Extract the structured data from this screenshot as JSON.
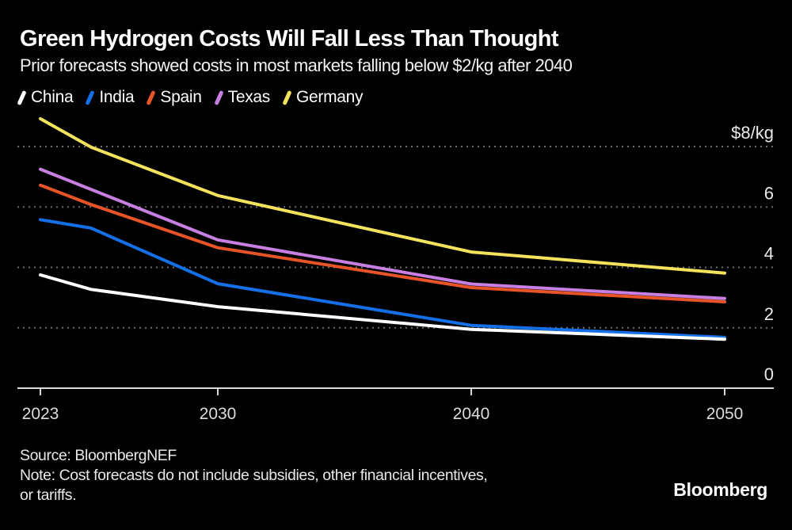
{
  "header": {
    "title": "Green Hydrogen Costs Will Fall Less Than Thought",
    "subtitle": "Prior forecasts showed costs in most markets falling below $2/kg after 2040"
  },
  "legend": [
    {
      "label": "China",
      "color": "#FFFFFF"
    },
    {
      "label": "India",
      "color": "#1570E8"
    },
    {
      "label": "Spain",
      "color": "#E65427"
    },
    {
      "label": "Texas",
      "color": "#C77FE2"
    },
    {
      "label": "Germany",
      "color": "#F2E25C"
    }
  ],
  "chart_data": {
    "type": "line",
    "title": "Green Hydrogen Costs Will Fall Less Than Thought",
    "subtitle": "Prior forecasts showed costs in most markets falling below $2/kg after 2040",
    "unit": "$/kg",
    "x": [
      2023,
      2025,
      2030,
      2040,
      2050
    ],
    "series": [
      {
        "name": "China",
        "color": "#FFFFFF",
        "values": [
          3.75,
          3.27,
          2.7,
          1.95,
          1.62
        ]
      },
      {
        "name": "India",
        "color": "#1570E8",
        "values": [
          5.58,
          5.3,
          3.46,
          2.08,
          1.68
        ]
      },
      {
        "name": "Spain",
        "color": "#E65427",
        "values": [
          6.72,
          6.08,
          4.65,
          3.33,
          2.86
        ]
      },
      {
        "name": "Texas",
        "color": "#C77FE2",
        "values": [
          7.25,
          6.58,
          4.91,
          3.45,
          2.97
        ]
      },
      {
        "name": "Germany",
        "color": "#F2E25C",
        "values": [
          8.92,
          7.98,
          6.38,
          4.51,
          3.81
        ]
      }
    ],
    "y_axis": {
      "top_label": "$8/kg",
      "ticks": [
        8,
        6,
        4,
        2,
        0
      ],
      "tick_labels": [
        "$8/kg",
        "6",
        "4",
        "2",
        "0"
      ],
      "range": [
        0,
        9.2
      ],
      "gridlines": "dotted"
    },
    "x_axis": {
      "ticks": [
        2023,
        2030,
        2040,
        2050
      ],
      "tick_labels": [
        "2023",
        "2030",
        "2040",
        "2050"
      ],
      "range": [
        2023,
        2050
      ]
    },
    "legend_position": "top-left"
  },
  "footer": {
    "source": "Source: BloombergNEF",
    "note_lines": [
      "Note: Cost forecasts do not include subsidies, other financial incentives,",
      "or tariffs."
    ],
    "brand": "Bloomberg"
  },
  "colors": {
    "background": "#000000",
    "text": "#FFFFFF",
    "axis": "#DCDCDC",
    "grid": "#6C6C6C"
  }
}
